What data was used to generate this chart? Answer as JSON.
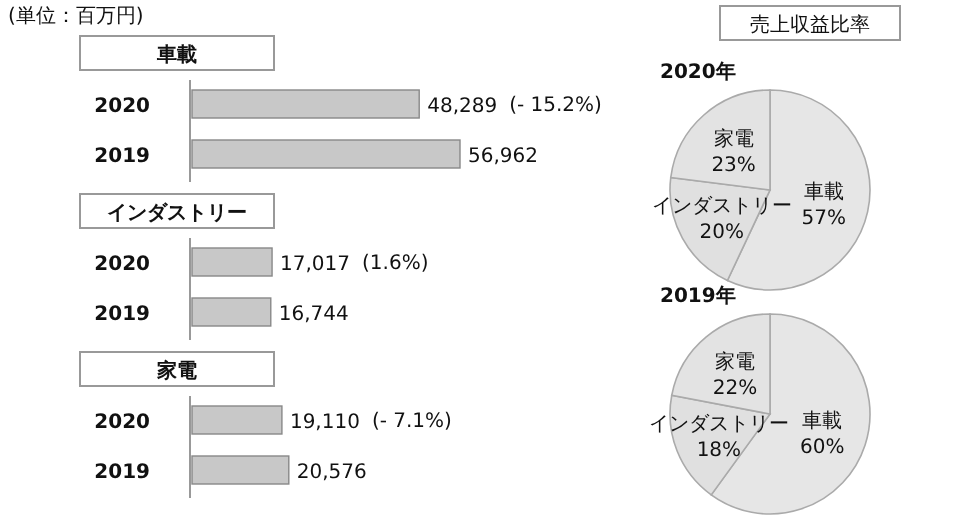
{
  "chart_data": [
    {
      "type": "bar",
      "orientation": "horizontal",
      "title": "車載",
      "categories": [
        "2020",
        "2019"
      ],
      "values": [
        48289,
        56962
      ],
      "value_labels": [
        "48,289",
        "56,962"
      ],
      "color": "#c8c8c8",
      "subtitle": "(単位：百万円)",
      "annotations": [
        "(- 15.2%)"
      ]
    },
    {
      "type": "bar",
      "orientation": "horizontal",
      "title": "インダストリー",
      "categories": [
        "2020",
        "2019"
      ],
      "values": [
        17017,
        16744
      ],
      "value_labels": [
        "17,017",
        "16,744"
      ],
      "color": "#c8c8c8",
      "annotations": [
        "(1.6%)"
      ]
    },
    {
      "type": "bar",
      "orientation": "horizontal",
      "title": "家電",
      "categories": [
        "2020",
        "2019"
      ],
      "values": [
        19110,
        20576
      ],
      "value_labels": [
        "19,110",
        "20,576"
      ],
      "color": "#c8c8c8",
      "annotations": [
        "(- 7.1%)"
      ]
    },
    {
      "type": "pie",
      "title": "2020年",
      "annotations": [
        "売上収益比率"
      ],
      "categories": [
        "車載",
        "インダストリー",
        "家電"
      ],
      "values": [
        57,
        20,
        23
      ],
      "value_labels": [
        "57%",
        "20%",
        "23%"
      ],
      "colors": [
        "#e6e6e6",
        "#e0e0e0",
        "#e3e3e3"
      ]
    },
    {
      "type": "pie",
      "title": "2019年",
      "categories": [
        "車載",
        "インダストリー",
        "家電"
      ],
      "values": [
        60,
        18,
        22
      ],
      "value_labels": [
        "60%",
        "18%",
        "22%"
      ],
      "colors": [
        "#e6e6e6",
        "#e0e0e0",
        "#e3e3e3"
      ]
    }
  ]
}
